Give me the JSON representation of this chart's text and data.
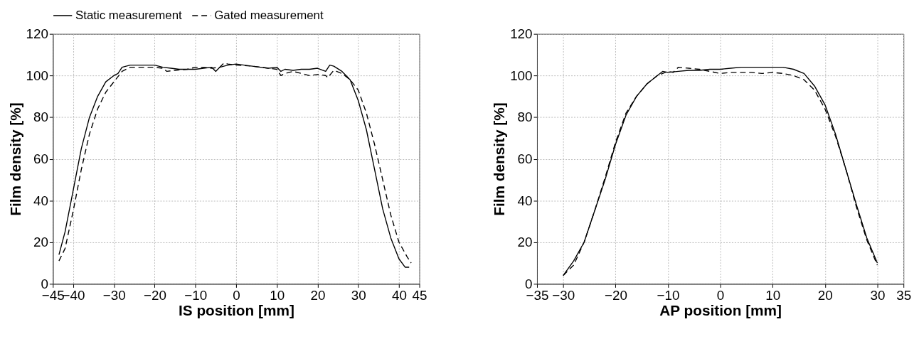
{
  "chart_data": [
    {
      "type": "line",
      "xlabel": "IS position [mm]",
      "ylabel": "Film density [%]",
      "xlim": [
        -45,
        45
      ],
      "xticks": [
        -45,
        -40,
        -30,
        -20,
        -10,
        0,
        10,
        20,
        30,
        40,
        45
      ],
      "ylim": [
        0,
        120
      ],
      "yticks": [
        0,
        20,
        40,
        60,
        80,
        100,
        120
      ],
      "grid": true,
      "legend": "top",
      "series": [
        {
          "name": "Static measurement",
          "color": "#000000",
          "line_style": "solid",
          "x": [
            -43.5,
            -42,
            -40,
            -38,
            -36,
            -34,
            -32,
            -30,
            -29,
            -28,
            -26,
            -24,
            -22,
            -20,
            -18,
            -16,
            -14,
            -12,
            -10,
            -8,
            -6,
            -5,
            -4,
            -2,
            0,
            2,
            4,
            6,
            8,
            10,
            11,
            12,
            14,
            16,
            18,
            20,
            22,
            23,
            24,
            26,
            28,
            30,
            32,
            34,
            36,
            38,
            40,
            41.5,
            42.5
          ],
          "values": [
            14,
            25,
            45,
            65,
            80,
            90,
            97,
            100,
            101,
            104,
            105,
            105,
            105,
            105,
            104,
            103.5,
            103,
            103,
            103,
            103.5,
            104,
            102,
            104,
            105,
            105.5,
            105,
            104.5,
            104,
            103.5,
            104,
            102,
            103,
            102.5,
            103,
            103,
            103.5,
            102,
            105,
            104.5,
            102,
            98,
            88,
            74,
            55,
            36,
            22,
            12,
            8,
            8
          ]
        },
        {
          "name": "Gated measurement",
          "color": "#000000",
          "line_style": "dashed",
          "x": [
            -43.5,
            -42,
            -40,
            -38,
            -36,
            -34,
            -32,
            -30,
            -28,
            -26,
            -24,
            -22,
            -20,
            -18,
            -17,
            -15,
            -12,
            -10,
            -8,
            -6,
            -4,
            -3,
            -2,
            0,
            4,
            8,
            10,
            11,
            12,
            14,
            16,
            18,
            20,
            22,
            22.5,
            24,
            26,
            28,
            30,
            32,
            34,
            36,
            38,
            40,
            42,
            43
          ],
          "values": [
            11,
            17,
            35,
            55,
            72,
            84,
            92,
            97,
            102,
            104,
            104,
            104,
            104,
            103.5,
            102,
            102.5,
            103,
            104,
            104,
            103.5,
            104,
            106,
            105.5,
            105,
            104.5,
            103.5,
            103,
            100,
            101,
            102,
            101,
            100,
            100.5,
            100,
            99,
            102.5,
            101,
            98,
            93,
            82,
            67,
            50,
            33,
            20,
            13,
            10
          ]
        }
      ]
    },
    {
      "type": "line",
      "xlabel": "AP position [mm]",
      "ylabel": "Film density [%]",
      "xlim": [
        -35,
        35
      ],
      "xticks": [
        -35,
        -30,
        -20,
        -10,
        0,
        10,
        20,
        30,
        35
      ],
      "ylim": [
        0,
        120
      ],
      "yticks": [
        0,
        20,
        40,
        60,
        80,
        100,
        120
      ],
      "grid": true,
      "series": [
        {
          "color": "#000000",
          "line_style": "solid",
          "x": [
            -30,
            -28,
            -26,
            -24,
            -22,
            -20,
            -18,
            -16,
            -14,
            -12,
            -11,
            -10,
            -8,
            -6,
            -4,
            -2,
            0,
            2,
            4,
            6,
            8,
            10,
            12,
            14,
            16,
            18,
            20,
            22,
            24,
            26,
            28,
            30
          ],
          "values": [
            4,
            11,
            20,
            35,
            50,
            67,
            81,
            90,
            96,
            100,
            102,
            101.5,
            102,
            102.5,
            102.5,
            103,
            103,
            103.5,
            104,
            104,
            104,
            104,
            104,
            103,
            101,
            95,
            86,
            72,
            55,
            38,
            22,
            10
          ]
        },
        {
          "color": "#000000",
          "line_style": "dashed",
          "x": [
            -30,
            -28,
            -26,
            -24,
            -22,
            -20,
            -18,
            -16,
            -14,
            -12,
            -10,
            -9,
            -8,
            -6,
            -4,
            -2,
            0,
            2,
            4,
            6,
            8,
            10,
            12,
            14,
            16,
            18,
            20,
            22,
            24,
            26,
            28,
            30
          ],
          "values": [
            4,
            9,
            20,
            35,
            51,
            68,
            82,
            90,
            96,
            100,
            102,
            101.5,
            104,
            103.5,
            103,
            102,
            101,
            101.5,
            101.5,
            101.5,
            101,
            101.5,
            101,
            100,
            98,
            93,
            84,
            71,
            55,
            37,
            21,
            9
          ]
        }
      ]
    }
  ]
}
